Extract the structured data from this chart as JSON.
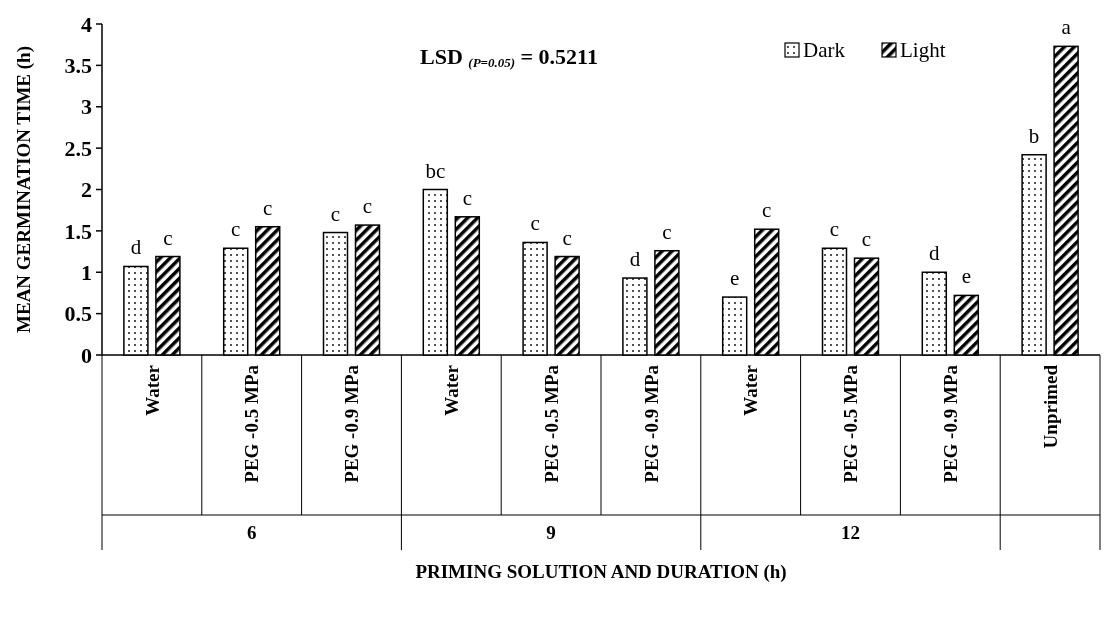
{
  "chart_data": {
    "type": "bar",
    "xlabel": "PRIMING SOLUTION AND DURATION (h)",
    "ylabel": "MEAN GERMINATION TIME (h)",
    "categories": [
      "Water",
      "PEG -0.5 MPa",
      "PEG -0.9 MPa",
      "Water",
      "PEG -0.5 MPa",
      "PEG -0.9 MPa",
      "Water",
      "PEG -0.5 MPa",
      "PEG -0.9 MPa",
      "Unprimed"
    ],
    "series": [
      {
        "name": "Dark",
        "color": "#000000",
        "values": [
          1.07,
          1.29,
          1.48,
          2.0,
          1.36,
          0.93,
          0.7,
          1.29,
          1.0,
          2.42
        ],
        "value_labels": [
          "d",
          "c",
          "c",
          "bc",
          "c",
          "d",
          "e",
          "c",
          "d",
          "b"
        ]
      },
      {
        "name": "Light",
        "color": "#000000",
        "values": [
          1.19,
          1.55,
          1.57,
          1.67,
          1.19,
          1.26,
          1.52,
          1.17,
          0.72,
          3.73
        ],
        "value_labels": [
          "c",
          "c",
          "c",
          "c",
          "c",
          "c",
          "c",
          "c",
          "e",
          "a"
        ]
      }
    ],
    "ylim": [
      0,
      4
    ],
    "yticks": [
      0,
      0.5,
      1,
      1.5,
      2,
      2.5,
      3,
      3.5,
      4
    ],
    "grid": false,
    "legend": "top",
    "annotations": [
      "LSD $_{(P=0.05)}$ = 0.5211",
      "6",
      "9",
      "12"
    ]
  }
}
